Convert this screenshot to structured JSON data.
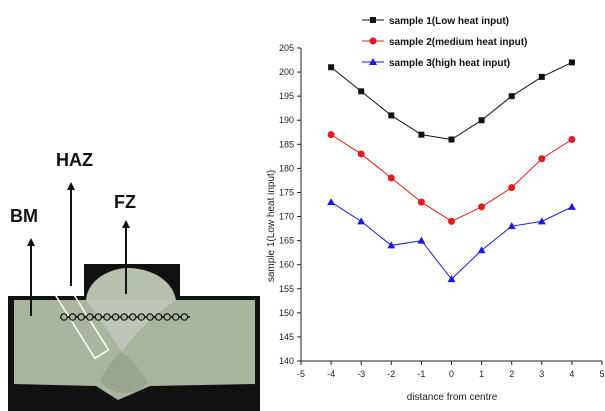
{
  "macrograph": {
    "labels": {
      "bm": "BM",
      "haz": "HAZ",
      "fz": "FZ"
    },
    "colors": {
      "plate": "#aab59e",
      "fusion": "#c2c7bc",
      "background": "#111111",
      "marks": "#111111"
    }
  },
  "chart_data": {
    "type": "line",
    "x": [
      -4,
      -3,
      -2,
      -1,
      0,
      1,
      2,
      3,
      4
    ],
    "series": [
      {
        "name": "sample 1(Low heat input)",
        "values": [
          201,
          196,
          191,
          187,
          186,
          190,
          195,
          199,
          202
        ],
        "color": "#111111",
        "marker": "square"
      },
      {
        "name": "sample 2(medium heat input)",
        "values": [
          187,
          183,
          178,
          173,
          169,
          172,
          176,
          182,
          186
        ],
        "color": "#e01b1b",
        "marker": "circle"
      },
      {
        "name": "sample 3(high heat input)",
        "values": [
          173,
          169,
          164,
          165,
          157,
          163,
          168,
          169,
          172
        ],
        "color": "#1a1ae0",
        "marker": "triangle"
      }
    ],
    "title": "",
    "xlabel": "distance from centre",
    "ylabel": "sample 1(Low heat input)",
    "xlim": [
      -5,
      5
    ],
    "ylim": [
      140,
      205
    ],
    "xticks": [
      -5,
      -4,
      -3,
      -2,
      -1,
      0,
      1,
      2,
      3,
      4,
      5
    ],
    "yticks": [
      140,
      145,
      150,
      155,
      160,
      165,
      170,
      175,
      180,
      185,
      190,
      195,
      200,
      205
    ],
    "grid": false,
    "legend_position": "top-left"
  }
}
